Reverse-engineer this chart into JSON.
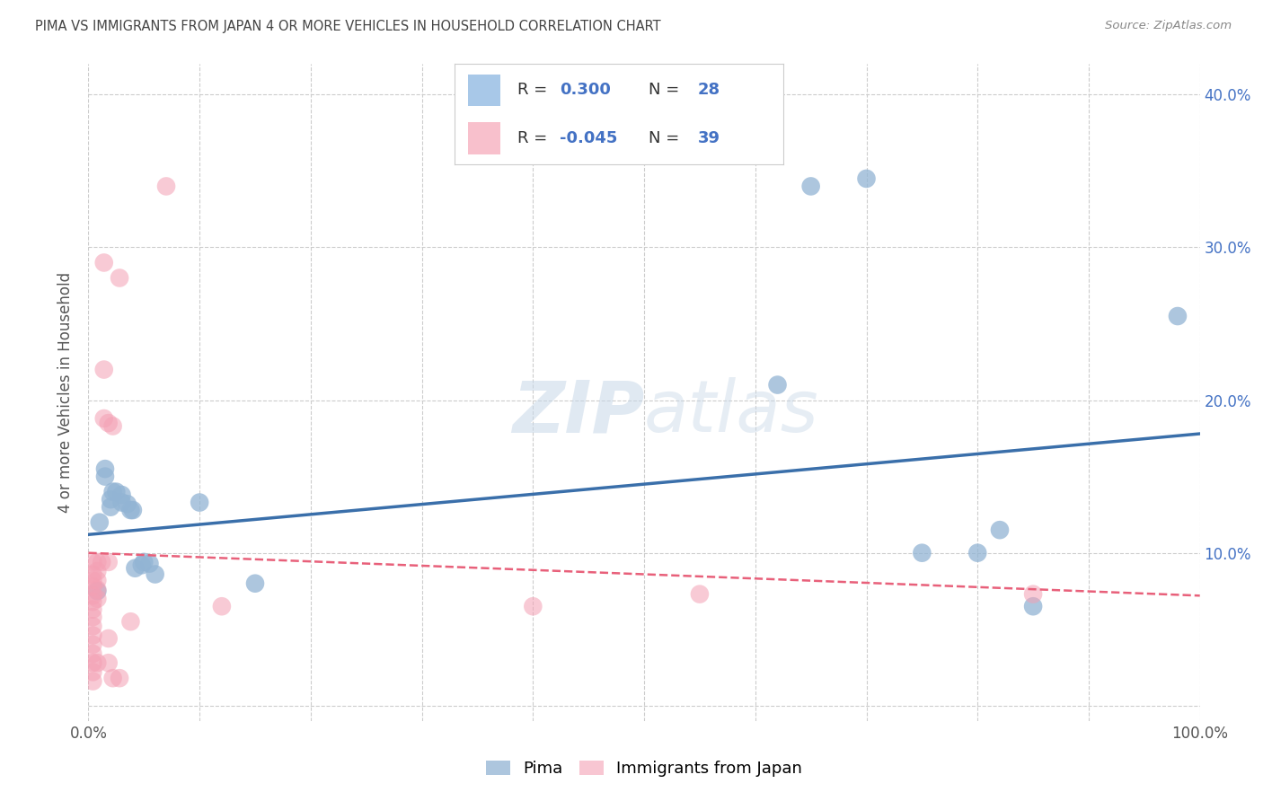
{
  "title": "PIMA VS IMMIGRANTS FROM JAPAN 4 OR MORE VEHICLES IN HOUSEHOLD CORRELATION CHART",
  "source": "Source: ZipAtlas.com",
  "ylabel": "4 or more Vehicles in Household",
  "xlim": [
    0,
    1.0
  ],
  "ylim": [
    -0.01,
    0.42
  ],
  "xticks": [
    0.0,
    0.1,
    0.2,
    0.3,
    0.4,
    0.5,
    0.6,
    0.7,
    0.8,
    0.9,
    1.0
  ],
  "xticklabels": [
    "0.0%",
    "",
    "",
    "",
    "",
    "",
    "",
    "",
    "",
    "",
    "100.0%"
  ],
  "yticks": [
    0.0,
    0.1,
    0.2,
    0.3,
    0.4
  ],
  "yticklabels": [
    "",
    "10.0%",
    "20.0%",
    "30.0%",
    "40.0%"
  ],
  "blue_scatter_color": "#92b4d4",
  "pink_scatter_color": "#f4a0b4",
  "blue_line_color": "#3a6faa",
  "pink_line_color": "#e8607a",
  "legend_blue_patch": "#a8c8e8",
  "legend_pink_patch": "#f8c0cc",
  "legend_text_color": "#4472c4",
  "legend_label_color": "#333333",
  "watermark_color": "#c8d8e8",
  "grid_color": "#cccccc",
  "background_color": "#ffffff",
  "blue_points": [
    [
      0.008,
      0.075
    ],
    [
      0.01,
      0.12
    ],
    [
      0.015,
      0.155
    ],
    [
      0.015,
      0.15
    ],
    [
      0.02,
      0.135
    ],
    [
      0.02,
      0.13
    ],
    [
      0.022,
      0.14
    ],
    [
      0.025,
      0.14
    ],
    [
      0.03,
      0.138
    ],
    [
      0.03,
      0.133
    ],
    [
      0.035,
      0.132
    ],
    [
      0.038,
      0.128
    ],
    [
      0.04,
      0.128
    ],
    [
      0.042,
      0.09
    ],
    [
      0.048,
      0.092
    ],
    [
      0.05,
      0.094
    ],
    [
      0.055,
      0.093
    ],
    [
      0.06,
      0.086
    ],
    [
      0.1,
      0.133
    ],
    [
      0.15,
      0.08
    ],
    [
      0.62,
      0.21
    ],
    [
      0.65,
      0.34
    ],
    [
      0.7,
      0.345
    ],
    [
      0.75,
      0.1
    ],
    [
      0.8,
      0.1
    ],
    [
      0.82,
      0.115
    ],
    [
      0.85,
      0.065
    ],
    [
      0.98,
      0.255
    ]
  ],
  "pink_points": [
    [
      0.004,
      0.094
    ],
    [
      0.004,
      0.086
    ],
    [
      0.004,
      0.082
    ],
    [
      0.004,
      0.078
    ],
    [
      0.004,
      0.072
    ],
    [
      0.004,
      0.068
    ],
    [
      0.004,
      0.063
    ],
    [
      0.004,
      0.058
    ],
    [
      0.004,
      0.052
    ],
    [
      0.004,
      0.046
    ],
    [
      0.004,
      0.04
    ],
    [
      0.004,
      0.034
    ],
    [
      0.004,
      0.028
    ],
    [
      0.004,
      0.022
    ],
    [
      0.004,
      0.016
    ],
    [
      0.008,
      0.094
    ],
    [
      0.008,
      0.088
    ],
    [
      0.008,
      0.082
    ],
    [
      0.008,
      0.076
    ],
    [
      0.008,
      0.07
    ],
    [
      0.008,
      0.028
    ],
    [
      0.012,
      0.094
    ],
    [
      0.014,
      0.29
    ],
    [
      0.014,
      0.22
    ],
    [
      0.014,
      0.188
    ],
    [
      0.018,
      0.185
    ],
    [
      0.018,
      0.094
    ],
    [
      0.018,
      0.044
    ],
    [
      0.018,
      0.028
    ],
    [
      0.022,
      0.183
    ],
    [
      0.022,
      0.018
    ],
    [
      0.028,
      0.28
    ],
    [
      0.028,
      0.018
    ],
    [
      0.038,
      0.055
    ],
    [
      0.07,
      0.34
    ],
    [
      0.12,
      0.065
    ],
    [
      0.4,
      0.065
    ],
    [
      0.55,
      0.073
    ],
    [
      0.85,
      0.073
    ]
  ],
  "blue_trend": [
    0.0,
    0.112,
    1.0,
    0.178
  ],
  "pink_trend": [
    0.0,
    0.1,
    1.0,
    0.072
  ],
  "legend_R1": "R = ",
  "legend_V1": " 0.300",
  "legend_N1": "   N = ",
  "legend_N1v": "28",
  "legend_R2": "R = ",
  "legend_V2": "-0.045",
  "legend_N2": "   N = ",
  "legend_N2v": "39",
  "bottom_legend": [
    "Pima",
    "Immigrants from Japan"
  ]
}
